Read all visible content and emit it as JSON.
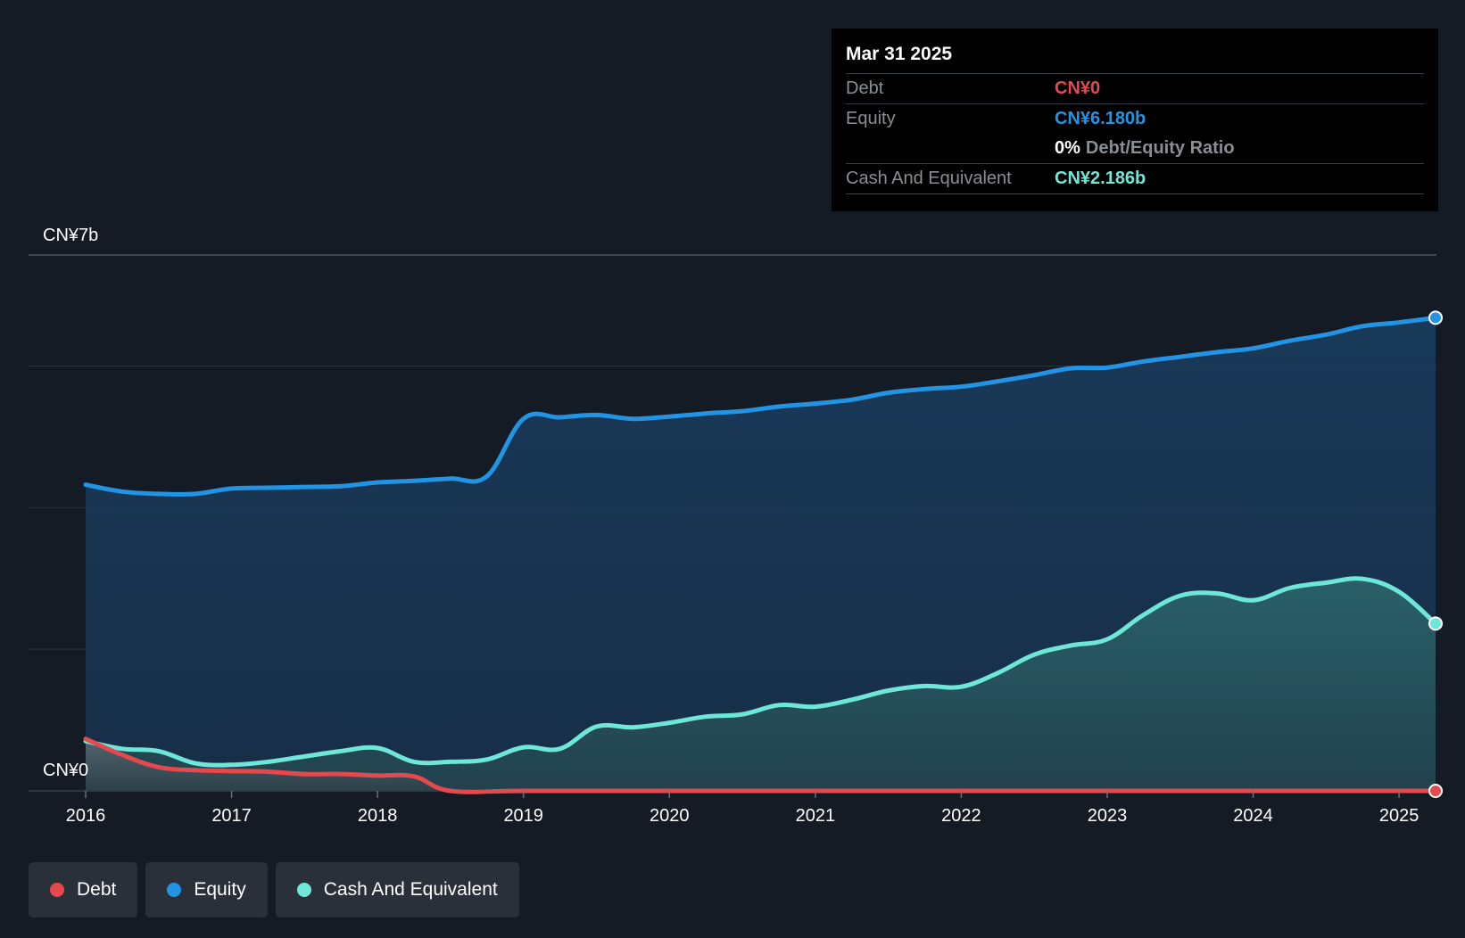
{
  "tooltip": {
    "date": "Mar 31 2025",
    "debt_label": "Debt",
    "debt_value": "CN¥0",
    "equity_label": "Equity",
    "equity_value": "CN¥6.180b",
    "ratio_value": "0%",
    "ratio_label": "Debt/Equity Ratio",
    "cash_label": "Cash And Equivalent",
    "cash_value": "CN¥2.186b"
  },
  "legend": [
    {
      "label": "Debt",
      "color": "#e5484d"
    },
    {
      "label": "Equity",
      "color": "#2394e3"
    },
    {
      "label": "Cash And Equivalent",
      "color": "#6ee7d8"
    }
  ],
  "colors": {
    "debt": "#e5484d",
    "equity": "#2394e3",
    "cash": "#6ee7d8",
    "background": "#151b24"
  },
  "chart_data": {
    "type": "area",
    "title": "",
    "ylabel_top": "CN¥7b",
    "ylabel_bottom": "CN¥0",
    "ylim": [
      0,
      7
    ],
    "x_ticks": [
      2016,
      2017,
      2018,
      2019,
      2020,
      2021,
      2022,
      2023,
      2024,
      2025
    ],
    "xlim": [
      2016.0,
      2025.25
    ],
    "series": [
      {
        "name": "Equity",
        "color": "#2394e3",
        "points": [
          [
            2016.0,
            4.0
          ],
          [
            2016.25,
            3.91
          ],
          [
            2016.5,
            3.88
          ],
          [
            2016.75,
            3.88
          ],
          [
            2017.0,
            3.95
          ],
          [
            2017.25,
            3.96
          ],
          [
            2017.5,
            3.97
          ],
          [
            2017.75,
            3.98
          ],
          [
            2018.0,
            4.03
          ],
          [
            2018.25,
            4.05
          ],
          [
            2018.5,
            4.08
          ],
          [
            2018.75,
            4.11
          ],
          [
            2019.0,
            4.86
          ],
          [
            2019.25,
            4.88
          ],
          [
            2019.5,
            4.91
          ],
          [
            2019.75,
            4.86
          ],
          [
            2020.0,
            4.89
          ],
          [
            2020.25,
            4.93
          ],
          [
            2020.5,
            4.96
          ],
          [
            2020.75,
            5.02
          ],
          [
            2021.0,
            5.06
          ],
          [
            2021.25,
            5.11
          ],
          [
            2021.5,
            5.2
          ],
          [
            2021.75,
            5.25
          ],
          [
            2022.0,
            5.28
          ],
          [
            2022.25,
            5.35
          ],
          [
            2022.5,
            5.43
          ],
          [
            2022.75,
            5.52
          ],
          [
            2023.0,
            5.53
          ],
          [
            2023.25,
            5.61
          ],
          [
            2023.5,
            5.67
          ],
          [
            2023.75,
            5.73
          ],
          [
            2024.0,
            5.78
          ],
          [
            2024.25,
            5.88
          ],
          [
            2024.5,
            5.96
          ],
          [
            2024.75,
            6.07
          ],
          [
            2025.0,
            6.12
          ],
          [
            2025.25,
            6.18
          ]
        ]
      },
      {
        "name": "Cash And Equivalent",
        "color": "#6ee7d8",
        "points": [
          [
            2016.0,
            0.65
          ],
          [
            2016.25,
            0.55
          ],
          [
            2016.5,
            0.52
          ],
          [
            2016.75,
            0.36
          ],
          [
            2017.0,
            0.34
          ],
          [
            2017.25,
            0.38
          ],
          [
            2017.5,
            0.45
          ],
          [
            2017.75,
            0.52
          ],
          [
            2018.0,
            0.56
          ],
          [
            2018.25,
            0.38
          ],
          [
            2018.5,
            0.38
          ],
          [
            2018.75,
            0.41
          ],
          [
            2019.0,
            0.57
          ],
          [
            2019.25,
            0.55
          ],
          [
            2019.5,
            0.84
          ],
          [
            2019.75,
            0.83
          ],
          [
            2020.0,
            0.89
          ],
          [
            2020.25,
            0.97
          ],
          [
            2020.5,
            1.0
          ],
          [
            2020.75,
            1.12
          ],
          [
            2021.0,
            1.1
          ],
          [
            2021.25,
            1.19
          ],
          [
            2021.5,
            1.31
          ],
          [
            2021.75,
            1.37
          ],
          [
            2022.0,
            1.36
          ],
          [
            2022.25,
            1.54
          ],
          [
            2022.5,
            1.78
          ],
          [
            2022.75,
            1.9
          ],
          [
            2023.0,
            1.98
          ],
          [
            2023.25,
            2.3
          ],
          [
            2023.5,
            2.55
          ],
          [
            2023.75,
            2.58
          ],
          [
            2024.0,
            2.49
          ],
          [
            2024.25,
            2.65
          ],
          [
            2024.5,
            2.72
          ],
          [
            2024.75,
            2.77
          ],
          [
            2025.0,
            2.6
          ],
          [
            2025.25,
            2.186
          ]
        ]
      },
      {
        "name": "Debt",
        "color": "#e5484d",
        "points": [
          [
            2016.0,
            0.68
          ],
          [
            2016.25,
            0.47
          ],
          [
            2016.5,
            0.31
          ],
          [
            2016.75,
            0.27
          ],
          [
            2017.0,
            0.26
          ],
          [
            2017.25,
            0.25
          ],
          [
            2017.5,
            0.22
          ],
          [
            2017.75,
            0.22
          ],
          [
            2018.0,
            0.2
          ],
          [
            2018.25,
            0.19
          ],
          [
            2018.5,
            0.0
          ],
          [
            2019.0,
            0.0
          ],
          [
            2020.0,
            0.0
          ],
          [
            2021.0,
            0.0
          ],
          [
            2022.0,
            0.0
          ],
          [
            2023.0,
            0.0
          ],
          [
            2024.0,
            0.0
          ],
          [
            2025.0,
            0.0
          ],
          [
            2025.25,
            0.0
          ]
        ]
      }
    ]
  }
}
